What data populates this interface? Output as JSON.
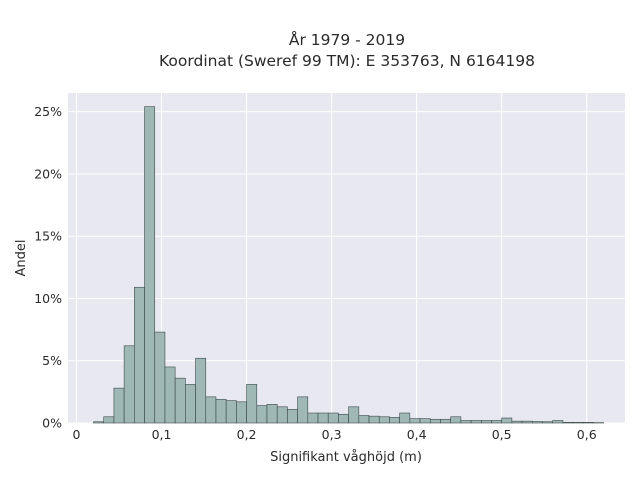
{
  "chart_data": {
    "type": "bar",
    "title": [
      "År 1979 - 2019",
      "Koordinat (Sweref 99 TM): E 353763, N 6164198"
    ],
    "xlabel": "Signifikant våghöjd (m)",
    "ylabel": "Andel",
    "xlim": [
      -0.01,
      0.645
    ],
    "ylim": [
      0,
      26.5
    ],
    "grid": true,
    "x_ticks": [
      {
        "value": 0,
        "label": "0"
      },
      {
        "value": 0.1,
        "label": "0,1"
      },
      {
        "value": 0.2,
        "label": "0,2"
      },
      {
        "value": 0.3,
        "label": "0,3"
      },
      {
        "value": 0.4,
        "label": "0,4"
      },
      {
        "value": 0.5,
        "label": "0,5"
      },
      {
        "value": 0.6,
        "label": "0,6"
      }
    ],
    "y_ticks": [
      {
        "value": 0,
        "label": "0%"
      },
      {
        "value": 5,
        "label": "5%"
      },
      {
        "value": 10,
        "label": "10%"
      },
      {
        "value": 15,
        "label": "15%"
      },
      {
        "value": 20,
        "label": "20%"
      },
      {
        "value": 25,
        "label": "25%"
      }
    ],
    "bin_width": 0.012,
    "bin_start": 0.02,
    "values": [
      0.1,
      0.5,
      2.8,
      6.2,
      10.9,
      25.4,
      7.3,
      4.5,
      3.6,
      3.1,
      5.2,
      2.1,
      1.9,
      1.8,
      1.7,
      3.1,
      1.4,
      1.5,
      1.3,
      1.1,
      2.1,
      0.8,
      0.8,
      0.8,
      0.7,
      1.3,
      0.6,
      0.55,
      0.5,
      0.45,
      0.8,
      0.35,
      0.35,
      0.3,
      0.3,
      0.5,
      0.2,
      0.2,
      0.2,
      0.2,
      0.4,
      0.15,
      0.15,
      0.12,
      0.1,
      0.2,
      0.05,
      0.05,
      0.05,
      0.03
    ]
  },
  "colors": {
    "bar_fill": "#9fb7b5",
    "bar_stroke": "#3a4a48",
    "plot_bg": "#e8e8f0",
    "grid": "#ffffff"
  }
}
